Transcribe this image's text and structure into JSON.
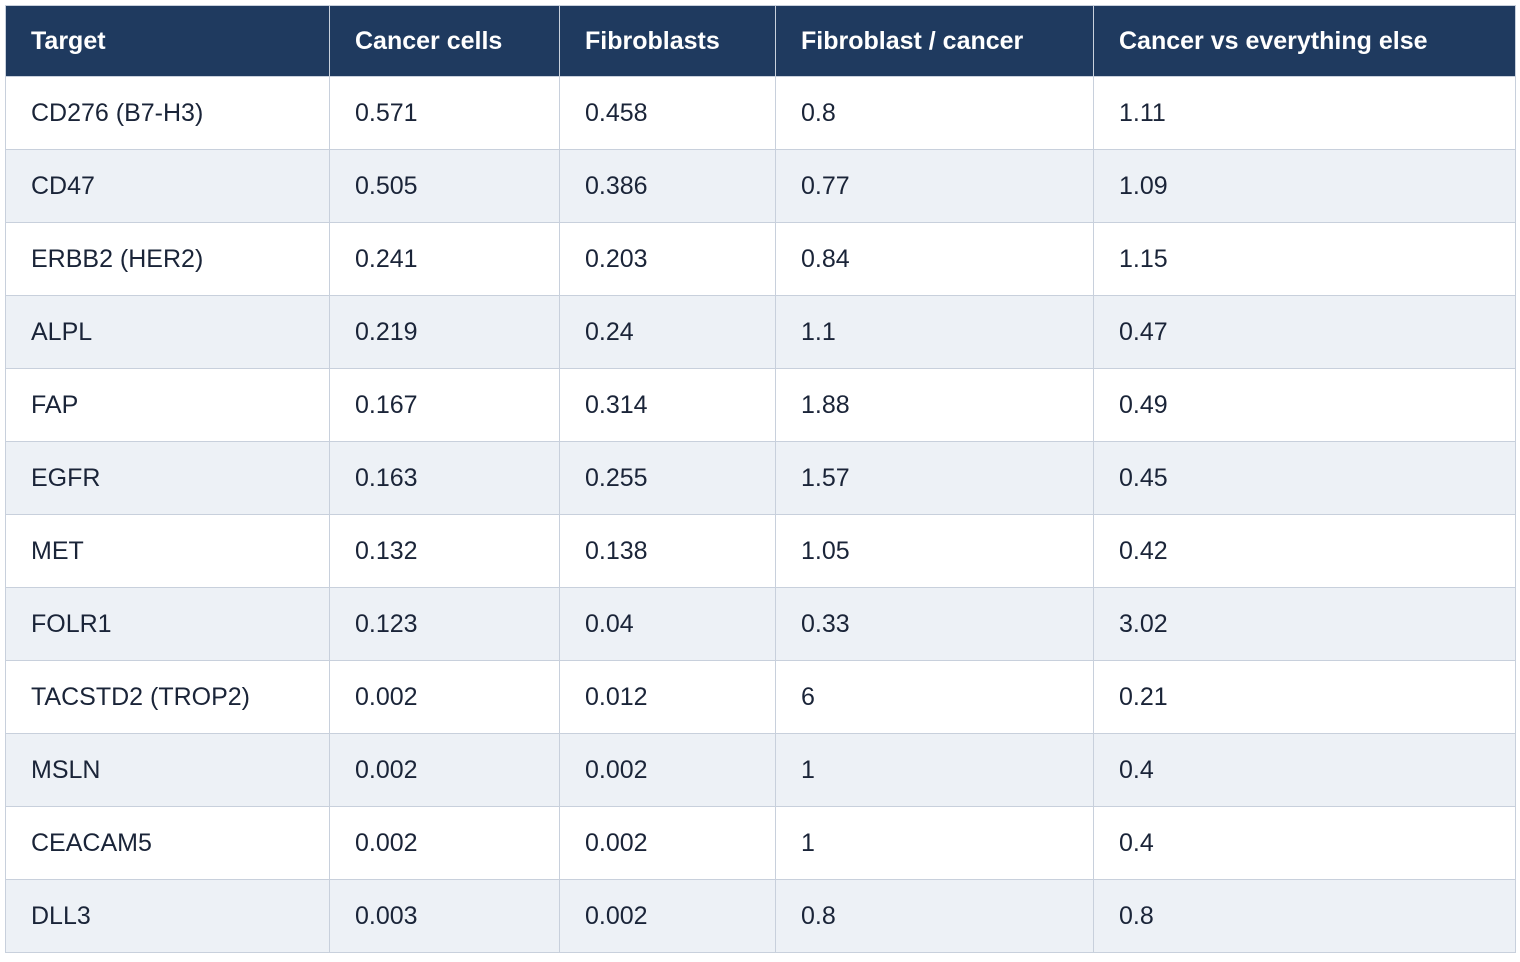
{
  "table": {
    "columns": [
      "Target",
      "Cancer cells",
      "Fibroblasts",
      "Fibroblast / cancer",
      "Cancer vs everything else"
    ],
    "rows": [
      [
        "CD276 (B7-H3)",
        "0.571",
        "0.458",
        "0.8",
        "1.11"
      ],
      [
        "CD47",
        "0.505",
        "0.386",
        "0.77",
        "1.09"
      ],
      [
        "ERBB2 (HER2)",
        "0.241",
        "0.203",
        "0.84",
        "1.15"
      ],
      [
        "ALPL",
        "0.219",
        "0.24",
        "1.1",
        "0.47"
      ],
      [
        "FAP",
        "0.167",
        "0.314",
        "1.88",
        "0.49"
      ],
      [
        "EGFR",
        "0.163",
        "0.255",
        "1.57",
        "0.45"
      ],
      [
        "MET",
        "0.132",
        "0.138",
        "1.05",
        "0.42"
      ],
      [
        "FOLR1",
        "0.123",
        "0.04",
        "0.33",
        "3.02"
      ],
      [
        "TACSTD2 (TROP2)",
        "0.002",
        "0.012",
        "6",
        "0.21"
      ],
      [
        "MSLN",
        "0.002",
        "0.002",
        "1",
        "0.4"
      ],
      [
        "CEACAM5",
        "0.002",
        "0.002",
        "1",
        "0.4"
      ],
      [
        "DLL3",
        "0.003",
        "0.002",
        "0.8",
        "0.8"
      ]
    ]
  },
  "colors": {
    "header_bg": "#1f3a5f",
    "header_text": "#ffffff",
    "row_alt_bg": "#edf1f6",
    "border": "#c8d0dc",
    "cell_text": "#1a2438"
  }
}
